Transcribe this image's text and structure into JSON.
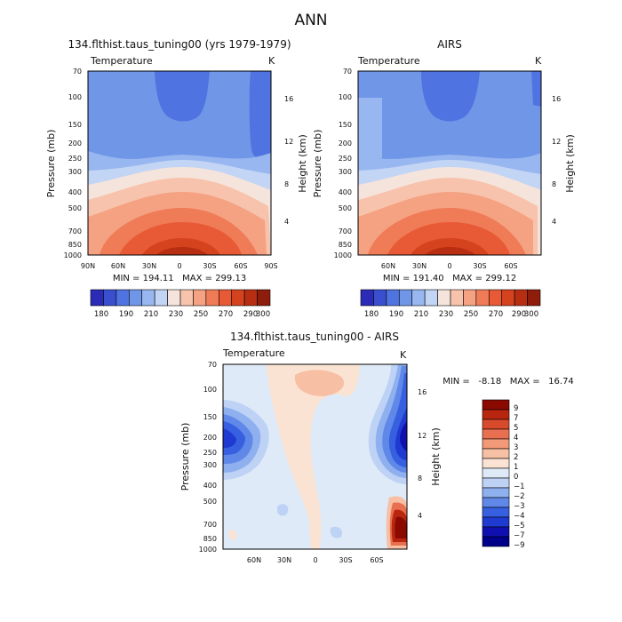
{
  "figure": {
    "title": "ANN"
  },
  "chart_data": [
    {
      "type": "heatmap",
      "title": "134.flthist.taus_tuning00 (yrs 1979-1979)",
      "variable": "Temperature",
      "units": "K",
      "x_ticks": [
        "90N",
        "60N",
        "30N",
        "0",
        "30S",
        "60S",
        "90S"
      ],
      "y_ticks": [
        "70",
        "100",
        "150",
        "200",
        "250",
        "300",
        "400",
        "500",
        "700",
        "850",
        "1000"
      ],
      "ylabel": "Pressure (mb)",
      "ylabel_right": "Height (km)",
      "y_right_ticks": [
        "16",
        "12",
        "8",
        "4"
      ],
      "stats": "MIN = 194.11   MAX = 299.13",
      "colorbar_labels": [
        "180",
        "190",
        "210",
        "230",
        "250",
        "270",
        "290",
        "300"
      ]
    },
    {
      "type": "heatmap",
      "title": "AIRS",
      "variable": "Temperature",
      "units": "K",
      "x_ticks": [
        "60N",
        "30N",
        "0",
        "30S",
        "60S"
      ],
      "y_ticks": [
        "70",
        "100",
        "150",
        "200",
        "250",
        "300",
        "400",
        "500",
        "700",
        "850",
        "1000"
      ],
      "ylabel": "Pressure (mb)",
      "ylabel_right": "Height (km)",
      "y_right_ticks": [
        "16",
        "12",
        "8",
        "4"
      ],
      "stats": "MIN = 191.40   MAX = 299.12",
      "colorbar_labels": [
        "180",
        "190",
        "210",
        "230",
        "250",
        "270",
        "290",
        "300"
      ]
    },
    {
      "type": "heatmap",
      "title": "134.flthist.taus_tuning00 - AIRS",
      "variable": "Temperature",
      "units": "K",
      "x_ticks": [
        "60N",
        "30N",
        "0",
        "30S",
        "60S"
      ],
      "y_ticks": [
        "70",
        "100",
        "150",
        "200",
        "250",
        "300",
        "400",
        "500",
        "700",
        "850",
        "1000"
      ],
      "ylabel": "Pressure (mb)",
      "ylabel_right": "Height (km)",
      "y_right_ticks": [
        "16",
        "12",
        "8",
        "4"
      ],
      "stats": "MIN =   -8.18   MAX =   16.74",
      "colorbar_labels": [
        "9",
        "7",
        "5",
        "4",
        "3",
        "2",
        "1",
        "0",
        "−1",
        "−2",
        "−3",
        "−4",
        "−5",
        "−7",
        "−9"
      ]
    }
  ],
  "colors": {
    "temp_scale": [
      "#2b2bb8",
      "#3a4fd0",
      "#4f73e0",
      "#7096e8",
      "#98b6ef",
      "#c3d5f5",
      "#f5e4dc",
      "#f7c3ac",
      "#f5a283",
      "#ef7b57",
      "#e85a35",
      "#d5421e",
      "#b82e12",
      "#8f1d0b"
    ],
    "diff_scale": [
      "#00008b",
      "#1010b0",
      "#1f3ad0",
      "#3760e0",
      "#5f88e8",
      "#8fb0ef",
      "#bdd2f5",
      "#dfeaf8",
      "#fbe3d3",
      "#f7bfa4",
      "#f29a78",
      "#e87050",
      "#d84a2c",
      "#b8260f",
      "#8b0a00"
    ],
    "diff_colorbar_order": [
      "#8b0a00",
      "#b8260f",
      "#d84a2c",
      "#e87050",
      "#f29a78",
      "#f7bfa4",
      "#fbe3d3",
      "#dfeaf8",
      "#bdd2f5",
      "#8fb0ef",
      "#5f88e8",
      "#3760e0",
      "#1f3ad0",
      "#1010b0",
      "#00008b"
    ]
  }
}
